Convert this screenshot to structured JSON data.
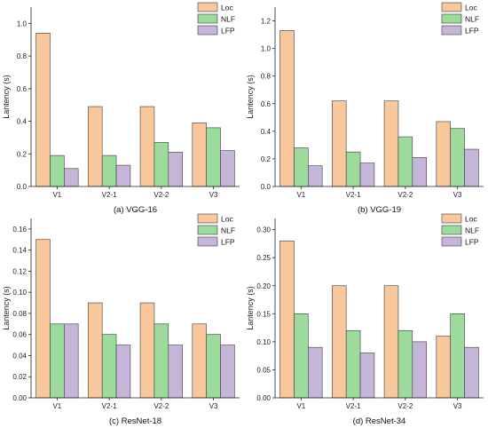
{
  "colors": {
    "Loc": "#F8C89C",
    "NLF": "#9CDB9C",
    "LFP": "#C5B5D9"
  },
  "chart_data": [
    {
      "type": "bar",
      "caption": "(a) VGG-16",
      "ylabel": "Lantency (s)",
      "categories": [
        "V1",
        "V2-1",
        "V2-2",
        "V3"
      ],
      "ylim": [
        0,
        1.1
      ],
      "yticks": [
        "0.0",
        "0.2",
        "0.4",
        "0.6",
        "0.8",
        "1.0"
      ],
      "ytick_values": [
        0,
        0.2,
        0.4,
        0.6,
        0.8,
        1.0
      ],
      "legend_position": "top-right",
      "series": [
        {
          "name": "Loc",
          "values": [
            0.94,
            0.49,
            0.49,
            0.39
          ]
        },
        {
          "name": "NLF",
          "values": [
            0.19,
            0.19,
            0.27,
            0.36
          ]
        },
        {
          "name": "LFP",
          "values": [
            0.11,
            0.13,
            0.21,
            0.22
          ]
        }
      ]
    },
    {
      "type": "bar",
      "caption": "(b) VGG-19",
      "ylabel": "Lantency (s)",
      "categories": [
        "V1",
        "V2-1",
        "V2-2",
        "V3"
      ],
      "ylim": [
        0,
        1.3
      ],
      "yticks": [
        "0.0",
        "0.2",
        "0.4",
        "0.6",
        "0.8",
        "1.0",
        "1.2"
      ],
      "ytick_values": [
        0,
        0.2,
        0.4,
        0.6,
        0.8,
        1.0,
        1.2
      ],
      "legend_position": "top-right",
      "series": [
        {
          "name": "Loc",
          "values": [
            1.13,
            0.62,
            0.62,
            0.47
          ]
        },
        {
          "name": "NLF",
          "values": [
            0.28,
            0.25,
            0.36,
            0.42
          ]
        },
        {
          "name": "LFP",
          "values": [
            0.15,
            0.17,
            0.21,
            0.27
          ]
        }
      ]
    },
    {
      "type": "bar",
      "caption": "(c) ResNet-18",
      "ylabel": "Lantency (s)",
      "categories": [
        "V1",
        "V2-1",
        "V2-2",
        "V3"
      ],
      "ylim": [
        0,
        0.17
      ],
      "yticks": [
        "0.00",
        "0.02",
        "0.04",
        "0.06",
        "0.08",
        "0.10",
        "0.12",
        "0.14",
        "0.16"
      ],
      "ytick_values": [
        0,
        0.02,
        0.04,
        0.06,
        0.08,
        0.1,
        0.12,
        0.14,
        0.16
      ],
      "legend_position": "top-right",
      "series": [
        {
          "name": "Loc",
          "values": [
            0.15,
            0.09,
            0.09,
            0.07
          ]
        },
        {
          "name": "NLF",
          "values": [
            0.07,
            0.06,
            0.07,
            0.06
          ]
        },
        {
          "name": "LFP",
          "values": [
            0.07,
            0.05,
            0.05,
            0.05
          ]
        }
      ]
    },
    {
      "type": "bar",
      "caption": "(d) ResNet-34",
      "ylabel": "Lantency (s)",
      "categories": [
        "V1",
        "V2-1",
        "V2-2",
        "V3"
      ],
      "ylim": [
        0,
        0.32
      ],
      "yticks": [
        "0.00",
        "0.05",
        "0.10",
        "0.15",
        "0.20",
        "0.25",
        "0.30"
      ],
      "ytick_values": [
        0,
        0.05,
        0.1,
        0.15,
        0.2,
        0.25,
        0.3
      ],
      "legend_position": "top-right",
      "series": [
        {
          "name": "Loc",
          "values": [
            0.28,
            0.2,
            0.2,
            0.11
          ]
        },
        {
          "name": "NLF",
          "values": [
            0.15,
            0.12,
            0.12,
            0.15
          ]
        },
        {
          "name": "LFP",
          "values": [
            0.09,
            0.08,
            0.1,
            0.09
          ]
        }
      ]
    }
  ]
}
